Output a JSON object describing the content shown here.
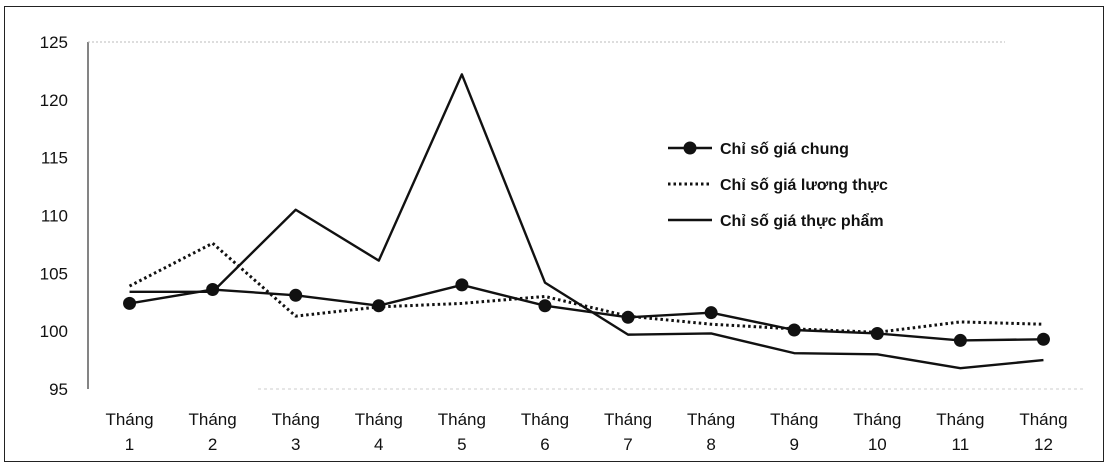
{
  "chart_data": {
    "type": "line",
    "title": "",
    "xlabel": "",
    "ylabel": "",
    "ylim": [
      95,
      125
    ],
    "yticks": [
      95,
      100,
      105,
      110,
      115,
      120,
      125
    ],
    "categories": [
      [
        "Tháng",
        "1"
      ],
      [
        "Tháng",
        "2"
      ],
      [
        "Tháng",
        "3"
      ],
      [
        "Tháng",
        "4"
      ],
      [
        "Tháng",
        "5"
      ],
      [
        "Tháng",
        "6"
      ],
      [
        "Tháng",
        "7"
      ],
      [
        "Tháng",
        "8"
      ],
      [
        "Tháng",
        "9"
      ],
      [
        "Tháng",
        "10"
      ],
      [
        "Tháng",
        "11"
      ],
      [
        "Tháng",
        "12"
      ]
    ],
    "grid": false,
    "legend_position": "right",
    "series": [
      {
        "name": "Chỉ số giá chung",
        "style": "solid-markers",
        "color": "#111111",
        "values": [
          102.4,
          103.6,
          103.1,
          102.2,
          104.0,
          102.2,
          101.2,
          101.6,
          100.1,
          99.8,
          99.2,
          99.3
        ]
      },
      {
        "name": "Chỉ số giá lương thực",
        "style": "dotted",
        "color": "#111111",
        "values": [
          103.9,
          107.6,
          101.3,
          102.1,
          102.4,
          103.0,
          101.3,
          100.6,
          100.2,
          99.9,
          100.8,
          100.6
        ]
      },
      {
        "name": "Chỉ số giá thực phẩm",
        "style": "solid",
        "color": "#111111",
        "values": [
          103.4,
          103.4,
          110.5,
          106.1,
          122.2,
          104.2,
          99.7,
          99.8,
          98.1,
          98.0,
          96.8,
          97.5
        ]
      }
    ]
  }
}
